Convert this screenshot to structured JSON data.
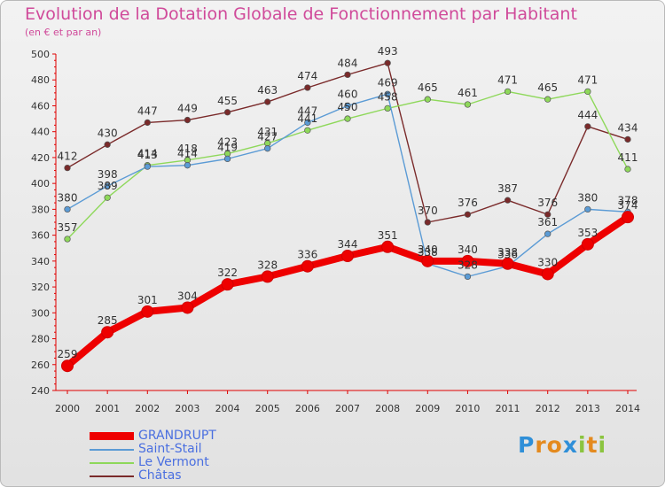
{
  "header": {
    "title": "Evolution de la Dotation Globale de Fonctionnement par Habitant",
    "subtitle": "(en € et par an)"
  },
  "chart_data": {
    "type": "line",
    "title": "Evolution de la Dotation Globale de Fonctionnement par Habitant",
    "ylabel": "(en € et par an)",
    "xlabel": "",
    "ylim": [
      240,
      500
    ],
    "ytick_step": 20,
    "grid": false,
    "legend": "bottom-left",
    "x": [
      "2000",
      "2001",
      "2002",
      "2003",
      "2004",
      "2005",
      "2006",
      "2007",
      "2008",
      "2009",
      "2010",
      "2011",
      "2012",
      "2013",
      "2014"
    ],
    "series": [
      {
        "name": "GRANDRUPT",
        "color": "#ee0000",
        "values": [
          259,
          285,
          301,
          304,
          322,
          328,
          336,
          344,
          351,
          340,
          340,
          338,
          330,
          353,
          374
        ]
      },
      {
        "name": "Saint-Stail",
        "color": "#5b9bd5",
        "values": [
          380,
          398,
          413,
          414,
          419,
          427,
          447,
          460,
          469,
          338,
          328,
          336,
          361,
          380,
          378
        ]
      },
      {
        "name": "Le Vermont",
        "color": "#8ed85a",
        "values": [
          357,
          389,
          414,
          418,
          423,
          431,
          441,
          450,
          458,
          465,
          461,
          471,
          465,
          471,
          411
        ]
      },
      {
        "name": "Châtas",
        "color": "#7a2a2a",
        "values": [
          412,
          430,
          447,
          449,
          455,
          463,
          474,
          484,
          493,
          370,
          376,
          387,
          376,
          444,
          434
        ]
      }
    ]
  },
  "legend": {
    "items": [
      {
        "label": "GRANDRUPT",
        "color": "#ee0000"
      },
      {
        "label": "Saint-Stail",
        "color": "#5b9bd5"
      },
      {
        "label": "Le Vermont",
        "color": "#8ed85a"
      },
      {
        "label": "Châtas",
        "color": "#7a2a2a"
      }
    ]
  },
  "logo": {
    "letters": [
      "P",
      "r",
      "o",
      "x",
      "i",
      "t",
      "i"
    ],
    "colors": [
      "#2f8fd8",
      "#e48a1e",
      "#e48a1e",
      "#2f8fd8",
      "#8bc43f",
      "#e48a1e",
      "#8bc43f"
    ]
  }
}
